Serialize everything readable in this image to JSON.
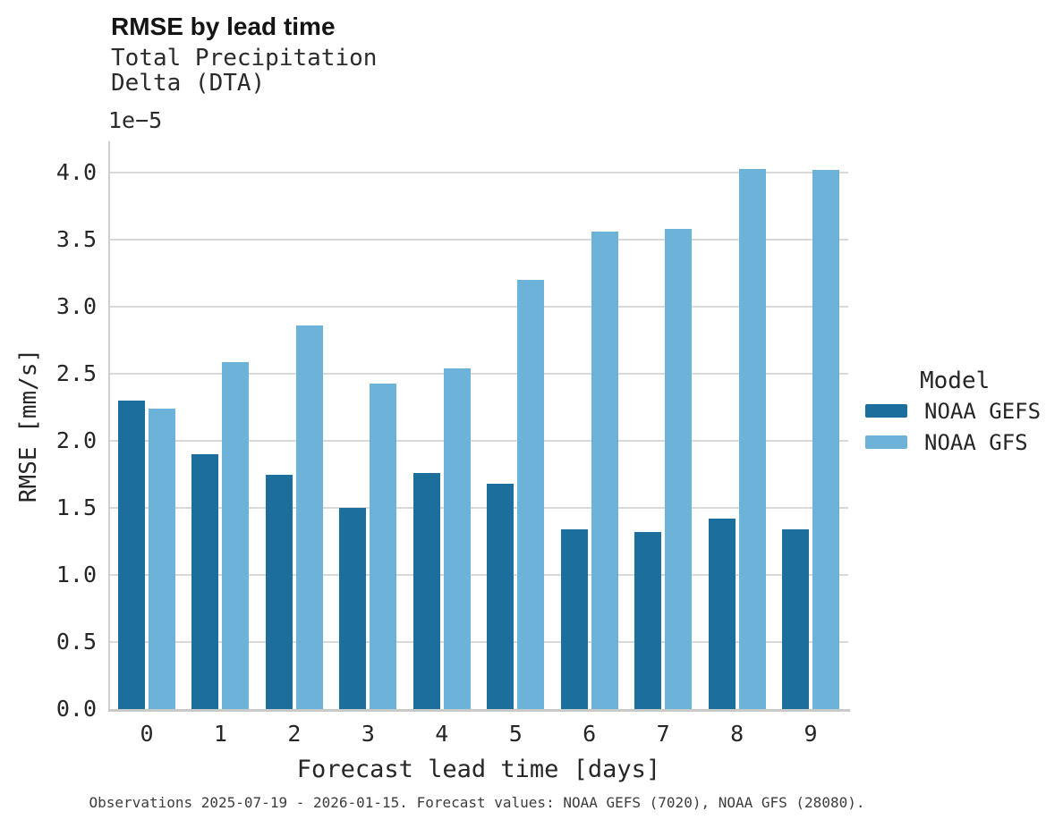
{
  "header": {
    "title": "RMSE by lead time",
    "subtitle_lines": [
      "Total Precipitation",
      "Delta (DTA)"
    ]
  },
  "chart_data": {
    "type": "bar",
    "title": "RMSE by lead time",
    "subtitle": "Total Precipitation Delta (DTA)",
    "xlabel": "Forecast lead time [days]",
    "ylabel": "RMSE [mm/s]",
    "value_scale_label": "1e−5",
    "categories": [
      "0",
      "1",
      "2",
      "3",
      "4",
      "5",
      "6",
      "7",
      "8",
      "9"
    ],
    "series": [
      {
        "name": "NOAA GEFS",
        "color": "#1c6e9c",
        "values": [
          2.3,
          1.9,
          1.75,
          1.5,
          1.76,
          1.68,
          1.34,
          1.32,
          1.42,
          1.34
        ]
      },
      {
        "name": "NOAA GFS",
        "color": "#6db2d9",
        "values": [
          2.24,
          2.59,
          2.86,
          2.43,
          2.54,
          3.2,
          3.56,
          3.58,
          4.03,
          4.02
        ]
      }
    ],
    "ylim": [
      0,
      4.23
    ],
    "yticks": [
      0.0,
      0.5,
      1.0,
      1.5,
      2.0,
      2.5,
      3.0,
      3.5,
      4.0
    ],
    "grid": true,
    "legend_title": "Model",
    "legend_position": "right",
    "colors": {
      "grid": "#d9d9d9",
      "spine": "#c9c9c9",
      "text": "#262626"
    }
  },
  "footer": {
    "caption": "Observations 2025-07-19 - 2026-01-15. Forecast values: NOAA GEFS (7020), NOAA GFS (28080)."
  }
}
